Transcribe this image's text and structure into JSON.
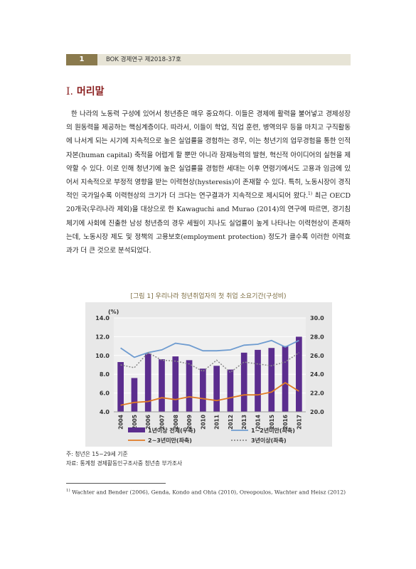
{
  "header": {
    "page_number": "1",
    "title": "BOK 경제연구 제2018-37호"
  },
  "section": {
    "number": "I.",
    "title": "머리말"
  },
  "body": {
    "text_1": "한 나라의 노동력 구성에 있어서 청년층은 매우 중요하다. 이들은 경제에 활력을 불어넣고 경제성장의 원동력을 제공하는 핵심계층이다. 따라서, 이들이 학업, 직업 훈련, 병역의무 등을 마치고 구직활동에 나서게 되는 시기에 지속적으로 높은 실업률을 경험하는 경우, 이는 청년기의 업무경험을 통한 인적자본(human capital) 축적을 어렵게 할 뿐만 아니라 잠재능력의 발현, 혁신적 아이디어의 실현을 제약할 수 있다. 이로 인해 청년기에 높은 실업률을 경험한 세대는 이후 연령기에서도 고용과 임금에 있어서 지속적으로 부정적 영향을 받는 이력현상(hysteresis)이 존재할 수 있다. 특히, 노동시장이 경직적인 국가일수록 이력현상의 크기가 더 크다는 연구결과가 지속적으로 제시되어 왔다.",
    "footnote_ref": "1)",
    "text_2": " 최근 OECD 20개국(우리나라 제외)을 대상으로 한 Kawaguchi and Murao (2014)의 연구에 따르면, 경기침체기에 사회에 진출한 남성 청년층의 경우 세월이 지나도 실업률이 높게 나타나는 이력현상이 존재하는데, 노동시장 제도 및 정책의 고용보호(employment protection) 정도가 클수록 이러한 이력효과가 더 큰 것으로 분석되었다."
  },
  "figure": {
    "caption": "[그림 1] 우리나라 청년취업자의 첫 취업 소요기간(구성비)",
    "note": "주: 청년은 15~29세 기준",
    "source": "자료: 통계청 경제활동인구조사중 청년층 부가조사"
  },
  "footnote": {
    "mark": "1)",
    "text": " Wachter and Bender (2006), Genda, Kondo and Ohta (2010), Oreopoulos, Wachter and Heisz (2012)"
  },
  "chart_data": {
    "type": "bar",
    "categories": [
      "2004",
      "2005",
      "2006",
      "2007",
      "2008",
      "2009",
      "2010",
      "2011",
      "2012",
      "2013",
      "2014",
      "2015",
      "2016",
      "2017"
    ],
    "ylabel": "(%)",
    "ylim": [
      4.0,
      14.0
    ],
    "y2lim": [
      20.0,
      30.0
    ],
    "yticks": [
      "14.0",
      "12.0",
      "10.0",
      "8.0",
      "6.0",
      "4.0"
    ],
    "y2ticks": [
      "30.0",
      "28.0",
      "26.0",
      "24.0",
      "22.0",
      "20.0"
    ],
    "grid": true,
    "legend_position": "bottom",
    "series": [
      {
        "name": "1년이상 전체(우축)",
        "type": "bar",
        "axis": "right",
        "color": "#5b2d8e",
        "values": [
          25.3,
          23.6,
          26.2,
          25.6,
          25.9,
          25.5,
          24.6,
          24.9,
          24.5,
          26.3,
          26.6,
          26.8,
          27.0,
          28.0
        ]
      },
      {
        "name": "1~2년미만(좌축)",
        "type": "line",
        "axis": "left",
        "color": "#6f9cd0",
        "values": [
          10.8,
          9.8,
          10.3,
          10.6,
          11.3,
          11.1,
          10.5,
          10.5,
          10.6,
          11.1,
          11.2,
          11.6,
          10.9,
          11.6
        ]
      },
      {
        "name": "2~3년미만(좌축)",
        "type": "line",
        "axis": "left",
        "color": "#e07b24",
        "values": [
          4.7,
          5.0,
          5.1,
          5.5,
          5.3,
          5.6,
          5.4,
          5.2,
          5.5,
          5.8,
          5.8,
          6.1,
          7.1,
          6.2
        ]
      },
      {
        "name": "3년이상(좌축)",
        "type": "line",
        "axis": "left",
        "color": "#8a8a8a",
        "dashed": true,
        "values": [
          9.0,
          8.7,
          10.3,
          9.5,
          9.4,
          9.1,
          8.3,
          9.5,
          8.2,
          9.3,
          9.1,
          8.9,
          9.3,
          10.3
        ]
      }
    ]
  }
}
